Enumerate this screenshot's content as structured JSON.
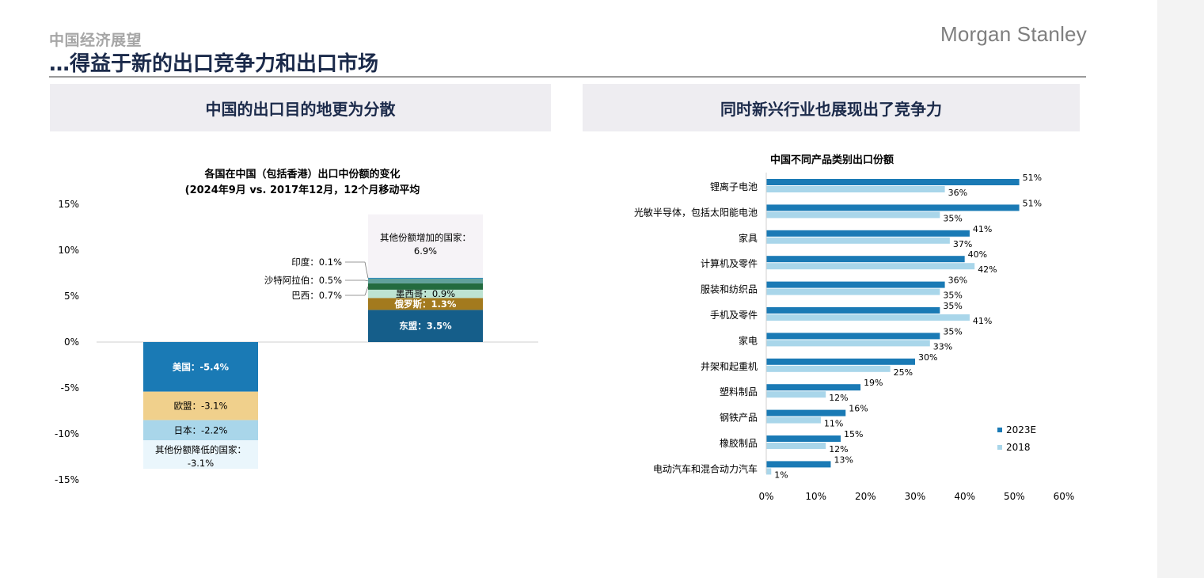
{
  "header": {
    "section_label": "中国经济展望",
    "title": "…得益于新的出口竞争力和出口市场",
    "brand": "Morgan Stanley"
  },
  "panels": {
    "left_header": "中国的出口目的地更为分散",
    "right_header": "同时新兴行业也展现出了竞争力"
  },
  "chart_data": [
    {
      "type": "bar",
      "stacked": true,
      "title": "各国在中国（包括香港）出口中份额的变化",
      "subtitle": "(2024年9月 vs. 2017年12月，12个月移动平均",
      "ylim": [
        -15,
        15
      ],
      "yticks": [
        "15%",
        "10%",
        "5%",
        "0%",
        "-5%",
        "-10%",
        "-15%"
      ],
      "ytick_values": [
        15,
        10,
        5,
        0,
        -5,
        -10,
        -15
      ],
      "grid": false,
      "columns": [
        {
          "segments": [
            {
              "label": "美国：-5.4%",
              "value": -5.4,
              "color": "#1a7ab5",
              "label_color": "#ffffff",
              "bold": true,
              "label_inside": true
            },
            {
              "label": "欧盟：-3.1%",
              "value": -3.1,
              "color": "#f0d08c",
              "label_color": "#000000",
              "bold": false,
              "label_inside": true
            },
            {
              "label": "日本：-2.2%",
              "value": -2.2,
              "color": "#a9d6ea",
              "label_color": "#000000",
              "bold": false,
              "label_inside": true
            },
            {
              "label": "其他份额降低的国家：-3.1%",
              "label_line1": "其他份额降低的国家：",
              "label_line2": "-3.1%",
              "value": -3.1,
              "color": "#eaf6fc",
              "label_color": "#000000",
              "bold": false,
              "label_inside": true
            }
          ]
        },
        {
          "segments": [
            {
              "label": "东盟：3.5%",
              "value": 3.5,
              "color": "#155e8a",
              "label_color": "#ffffff",
              "bold": true,
              "label_inside": true
            },
            {
              "label": "俄罗斯：1.3%",
              "value": 1.3,
              "color": "#a37a1e",
              "label_color": "#ffffff",
              "bold": true,
              "label_inside": true
            },
            {
              "label": "墨西哥：0.9%",
              "value": 0.9,
              "color": "#bde3d2",
              "label_color": "#000000",
              "bold": false,
              "label_inside": true
            },
            {
              "label": "巴西：0.7%",
              "value": 0.7,
              "color": "#236b3f",
              "label_color": "#000000",
              "bold": false,
              "label_inside": false
            },
            {
              "label": "沙特阿拉伯：0.5%",
              "value": 0.5,
              "color": "#5fa09a",
              "label_color": "#000000",
              "bold": false,
              "label_inside": false
            },
            {
              "label": "印度：0.1%",
              "value": 0.1,
              "color": "#2c89b8",
              "label_color": "#000000",
              "bold": false,
              "label_inside": false
            },
            {
              "label": "其他份额增加的国家：6.9%",
              "label_line1": "其他份额增加的国家：",
              "label_line2": "6.9%",
              "value": 6.9,
              "color": "#f6f3f7",
              "label_color": "#000000",
              "bold": false,
              "label_inside": true
            }
          ]
        }
      ]
    },
    {
      "type": "bar",
      "orientation": "horizontal",
      "title": "中国不同产品类别出口份额",
      "categories": [
        "锂离子电池",
        "光敏半导体，包括太阳能电池",
        "家具",
        "计算机及零件",
        "服装和纺织品",
        "手机及零件",
        "家电",
        "井架和起重机",
        "塑料制品",
        "钢铁产品",
        "橡胶制品",
        "电动汽车和混合动力汽车"
      ],
      "series": [
        {
          "name": "2023E",
          "color": "#1a7ab5",
          "values": [
            51,
            51,
            41,
            40,
            36,
            35,
            35,
            30,
            19,
            16,
            15,
            13
          ]
        },
        {
          "name": "2018",
          "color": "#a9d6ea",
          "values": [
            36,
            35,
            37,
            42,
            35,
            41,
            33,
            25,
            12,
            11,
            12,
            1
          ]
        }
      ],
      "value_labels": {
        "2023E": [
          "51%",
          "51%",
          "41%",
          "40%",
          "36%",
          "35%",
          "35%",
          "30%",
          "19%",
          "16%",
          "15%",
          "13%"
        ],
        "2018": [
          "36%",
          "35%",
          "37%",
          "42%",
          "35%",
          "41%",
          "33%",
          "25%",
          "12%",
          "11%",
          "12%",
          "1%"
        ]
      },
      "xlim": [
        0,
        60
      ],
      "xticks": [
        "0%",
        "10%",
        "20%",
        "30%",
        "40%",
        "50%",
        "60%"
      ],
      "xtick_values": [
        0,
        10,
        20,
        30,
        40,
        50,
        60
      ],
      "legend": "bottom-right",
      "grid": false
    }
  ]
}
